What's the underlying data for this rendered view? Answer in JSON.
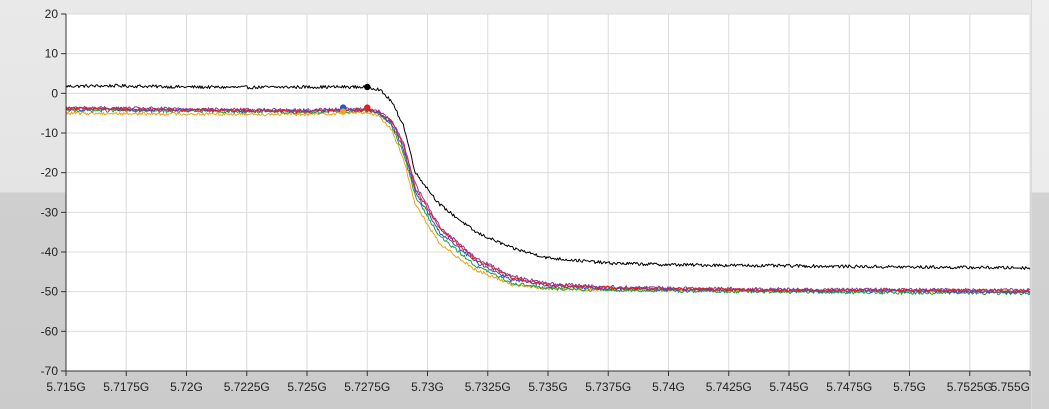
{
  "chart_data": {
    "type": "line",
    "title": "",
    "xlabel": "",
    "ylabel": "",
    "xlim": [
      5.715,
      5.755
    ],
    "ylim": [
      -70,
      20
    ],
    "grid": true,
    "x_ticks": [
      5.715,
      5.7175,
      5.72,
      5.7225,
      5.725,
      5.7275,
      5.73,
      5.7325,
      5.735,
      5.7375,
      5.74,
      5.7425,
      5.745,
      5.7475,
      5.75,
      5.7525,
      5.755
    ],
    "x_tick_labels": [
      "5.715G",
      "5.7175G",
      "5.72G",
      "5.7225G",
      "5.725G",
      "5.7275G",
      "5.73G",
      "5.7325G",
      "5.735G",
      "5.7375G",
      "5.74G",
      "5.7425G",
      "5.745G",
      "5.7475G",
      "5.75G",
      "5.7525G",
      "5.755G"
    ],
    "y_ticks": [
      20,
      10,
      0,
      -10,
      -20,
      -30,
      -40,
      -50,
      -60,
      -70
    ],
    "y_tick_labels": [
      "20",
      "10",
      "0",
      "-10",
      "-20",
      "-30",
      "-40",
      "-50",
      "-60",
      "-70"
    ],
    "series": [
      {
        "color": "#000000",
        "x": [
          5.715,
          5.717,
          5.72,
          5.7225,
          5.725,
          5.727,
          5.7275,
          5.728,
          5.7285,
          5.729,
          5.7295,
          5.7305,
          5.732,
          5.7335,
          5.735,
          5.7375,
          5.74,
          5.745,
          5.75,
          5.755
        ],
        "values": [
          1.8,
          1.9,
          1.6,
          1.5,
          1.6,
          1.6,
          1.6,
          1.0,
          -2.0,
          -8.0,
          -20.0,
          -28.0,
          -35.0,
          -39.0,
          -41.5,
          -42.8,
          -43.2,
          -43.5,
          -43.8,
          -44.0
        ],
        "marker": {
          "x": 5.7275,
          "y": 1.6
        }
      },
      {
        "color": "#e02020",
        "x": [
          5.715,
          5.72,
          5.7225,
          5.725,
          5.7265,
          5.7275,
          5.728,
          5.7285,
          5.729,
          5.7295,
          5.7305,
          5.732,
          5.7335,
          5.735,
          5.7375,
          5.74,
          5.745,
          5.75,
          5.755
        ],
        "values": [
          -3.8,
          -4.2,
          -4.3,
          -4.5,
          -4.3,
          -4.0,
          -4.8,
          -7.0,
          -13.0,
          -24.0,
          -34.0,
          -42.0,
          -46.5,
          -48.3,
          -49.0,
          -49.3,
          -49.6,
          -49.6,
          -49.8
        ],
        "marker": {
          "x": 5.7275,
          "y": -3.6
        }
      },
      {
        "color": "#3050c8",
        "x": [
          5.715,
          5.72,
          5.7225,
          5.725,
          5.7265,
          5.7275,
          5.728,
          5.7285,
          5.729,
          5.7295,
          5.7305,
          5.732,
          5.7335,
          5.735,
          5.7375,
          5.74,
          5.745,
          5.75,
          5.755
        ],
        "values": [
          -4.0,
          -4.2,
          -4.4,
          -4.4,
          -4.2,
          -4.2,
          -5.0,
          -7.5,
          -14.0,
          -25.0,
          -35.0,
          -42.5,
          -47.0,
          -48.5,
          -49.2,
          -49.4,
          -49.8,
          -49.9,
          -50.1
        ],
        "marker": {
          "x": 5.7265,
          "y": -3.6
        }
      },
      {
        "color": "#20a040",
        "x": [
          5.715,
          5.72,
          5.7225,
          5.725,
          5.7265,
          5.7275,
          5.728,
          5.7285,
          5.729,
          5.7295,
          5.7305,
          5.732,
          5.7335,
          5.735,
          5.7375,
          5.74,
          5.745,
          5.75,
          5.755
        ],
        "values": [
          -4.3,
          -4.5,
          -4.6,
          -4.8,
          -4.6,
          -4.4,
          -5.2,
          -8.0,
          -15.0,
          -26.0,
          -36.0,
          -43.5,
          -47.8,
          -49.2,
          -49.6,
          -49.8,
          -50.1,
          -50.3,
          -50.4
        ],
        "marker": null
      },
      {
        "color": "#8a3aa8",
        "x": [
          5.715,
          5.72,
          5.7225,
          5.725,
          5.7265,
          5.7275,
          5.728,
          5.7285,
          5.729,
          5.7295,
          5.7305,
          5.732,
          5.7335,
          5.735,
          5.7375,
          5.74,
          5.745,
          5.75,
          5.755
        ],
        "values": [
          -3.6,
          -3.9,
          -4.1,
          -4.2,
          -4.0,
          -3.9,
          -4.6,
          -6.8,
          -12.5,
          -23.0,
          -33.5,
          -41.5,
          -46.0,
          -48.0,
          -48.8,
          -49.1,
          -49.4,
          -49.5,
          -49.6
        ],
        "marker": null
      },
      {
        "color": "#f0a020",
        "x": [
          5.715,
          5.72,
          5.7225,
          5.725,
          5.7265,
          5.7275,
          5.728,
          5.7285,
          5.729,
          5.7295,
          5.7305,
          5.732,
          5.7335,
          5.735,
          5.7375,
          5.74,
          5.745,
          5.75,
          5.755
        ],
        "values": [
          -5.0,
          -5.2,
          -5.2,
          -5.3,
          -5.0,
          -4.8,
          -5.8,
          -9.0,
          -16.5,
          -28.0,
          -38.0,
          -44.5,
          -48.2,
          -49.3,
          -49.5,
          -49.6,
          -49.8,
          -49.9,
          -50.0
        ],
        "marker": {
          "x": 5.7265,
          "y": -4.6
        }
      }
    ]
  }
}
